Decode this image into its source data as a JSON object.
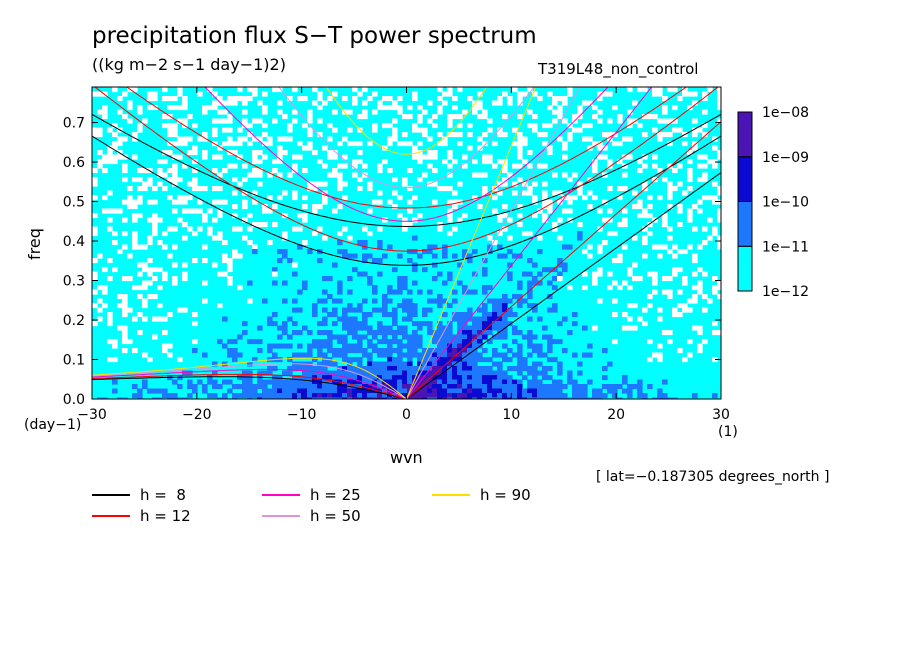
{
  "title": "precipitation flux S−T power spectrum",
  "units": "((kg m−2 s−1 day−1)2)",
  "run_label": "T319L48_non_control",
  "lat_note": "[ lat=−0.187305 degrees_north ]",
  "chart_data": {
    "type": "heatmap",
    "xlabel": "wvn",
    "xunit": "(1)",
    "ylabel": "freq",
    "yunit": "(day−1)",
    "xlim": [
      -30,
      30
    ],
    "ylim": [
      0.0,
      0.79
    ],
    "x_ticks": [
      -30,
      -20,
      -10,
      0,
      10,
      20,
      30
    ],
    "x_tick_labels": [
      "−30",
      "−20",
      "−10",
      "0",
      "10",
      "20",
      "30"
    ],
    "y_ticks": [
      0.0,
      0.1,
      0.2,
      0.3,
      0.4,
      0.5,
      0.6,
      0.7
    ],
    "y_tick_labels": [
      "0.0",
      "0.1",
      "0.2",
      "0.3",
      "0.4",
      "0.5",
      "0.6",
      "0.7"
    ],
    "colorbar": {
      "levels": [
        "1e−12",
        "1e−11",
        "1e−10",
        "1e−09",
        "1e−08"
      ],
      "colors": [
        "#00ffff",
        "#1e78ff",
        "#0a0ad2",
        "#4b14b4"
      ]
    },
    "dispersion_curves": [
      {
        "label": "h =  8",
        "color": "#000000"
      },
      {
        "label": "h = 12",
        "color": "#ff0000"
      },
      {
        "label": "h = 25",
        "color": "#ff00c8"
      },
      {
        "label": "h = 50",
        "color": "#dc96dc"
      },
      {
        "label": "h = 90",
        "color": "#ffdc00"
      }
    ]
  }
}
